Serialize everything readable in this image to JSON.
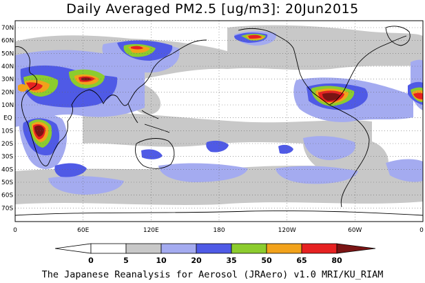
{
  "title": "Daily Averaged PM2.5 [ug/m3]: 20Jun2015",
  "footer": "The Japanese Reanalysis for Aerosol (JRAero) v1.0 MRI/KU_RIAM",
  "lat_labels": [
    "70N",
    "60N",
    "50N",
    "40N",
    "30N",
    "20N",
    "10N",
    "EQ",
    "10S",
    "20S",
    "30S",
    "40S",
    "50S",
    "60S",
    "70S"
  ],
  "lon_labels": [
    "0",
    "60E",
    "120E",
    "180",
    "120W",
    "60W",
    "0"
  ],
  "colorbar": {
    "levels": [
      "0",
      "5",
      "10",
      "20",
      "35",
      "50",
      "65",
      "80"
    ],
    "colors": [
      "#ffffff",
      "#c8c8c8",
      "#a4abf0",
      "#4f5ae6",
      "#8ccc2e",
      "#f2a21b",
      "#e62121",
      "#7a1414"
    ]
  }
}
